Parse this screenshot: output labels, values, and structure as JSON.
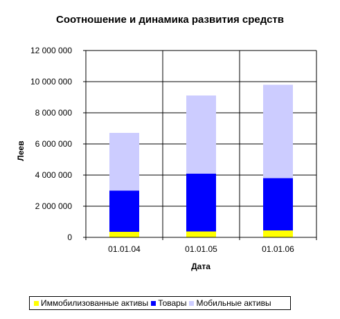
{
  "chart_data": {
    "type": "bar",
    "stacked": true,
    "title": "Соотношение и динамика развития средств",
    "xlabel": "Дата",
    "ylabel": "Леев",
    "categories": [
      "01.01.04",
      "01.01.05",
      "01.01.06"
    ],
    "ylim": [
      0,
      12000000
    ],
    "yticks": [
      0,
      2000000,
      4000000,
      6000000,
      8000000,
      10000000,
      12000000
    ],
    "ytick_labels": [
      "0",
      "2 000 000",
      "4 000 000",
      "6 000 000",
      "8 000 000",
      "10 000 000",
      "12 000 000"
    ],
    "grid": true,
    "legend_position": "bottom",
    "series": [
      {
        "name": "Иммобилизованные активы",
        "color": "#ffff00",
        "values": [
          350000,
          380000,
          450000
        ]
      },
      {
        "name": "Товары",
        "color": "#0000ff",
        "values": [
          2650000,
          3720000,
          3350000
        ]
      },
      {
        "name": "Мобильные активы",
        "color": "#ccccff",
        "values": [
          3720000,
          5020000,
          6000000
        ]
      }
    ]
  }
}
